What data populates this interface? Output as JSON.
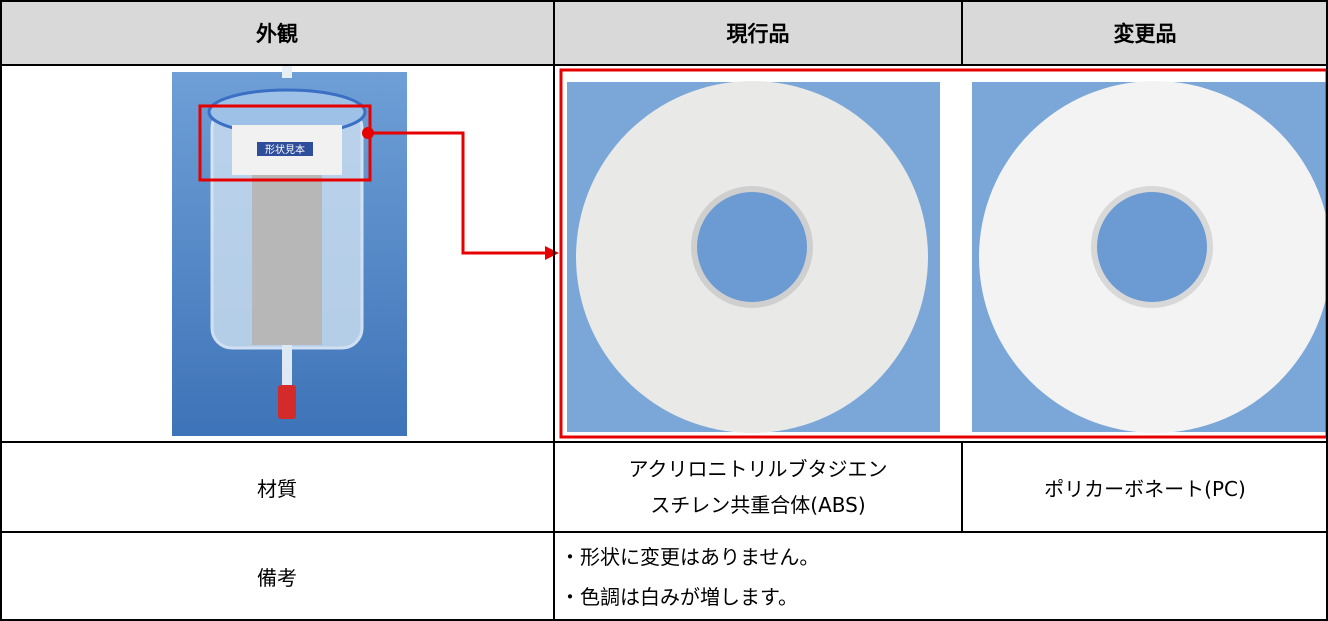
{
  "table": {
    "header": [
      "外観",
      "現行品",
      "変更品"
    ],
    "rows": [
      {
        "label": "材質",
        "cells": [
          [
            "アクリロニトリルブタジエン",
            "スチレン共重合体(ABS)"
          ],
          [
            "ポリカーボネート(PC)"
          ]
        ]
      },
      {
        "label": "備考",
        "notes": [
          "・形状に変更はありません。",
          "・色調は白みが増します。"
        ]
      }
    ]
  },
  "image": {
    "sample_label": "形状見本"
  }
}
